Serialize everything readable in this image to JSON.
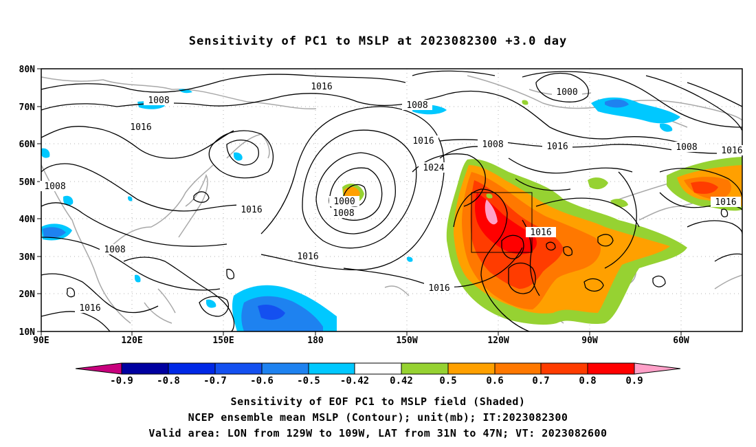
{
  "title": "Sensitivity of PC1 to MSLP at 2023082300 +3.0 day",
  "map": {
    "lon_labels": [
      "90E",
      "120E",
      "150E",
      "180",
      "150W",
      "120W",
      "90W",
      "60W"
    ],
    "lat_labels": [
      "80N",
      "70N",
      "60N",
      "50N",
      "40N",
      "30N",
      "20N",
      "10N"
    ],
    "contour_labels": [
      {
        "text": "1016"
      },
      {
        "text": "1008"
      },
      {
        "text": "1016"
      },
      {
        "text": "1008"
      },
      {
        "text": "1000"
      },
      {
        "text": "1008"
      },
      {
        "text": "1016"
      },
      {
        "text": "1008"
      },
      {
        "text": "1016"
      },
      {
        "text": "1016"
      },
      {
        "text": "1024"
      },
      {
        "text": "1000"
      },
      {
        "text": "1008"
      },
      {
        "text": "1016"
      },
      {
        "text": "1016"
      },
      {
        "text": "1008"
      },
      {
        "text": "1016"
      },
      {
        "text": "1016"
      },
      {
        "text": "1008"
      },
      {
        "text": "1016"
      },
      {
        "text": "1016"
      }
    ]
  },
  "colorbar": {
    "labels": [
      "-0.9",
      "-0.8",
      "-0.7",
      "-0.6",
      "-0.5",
      "-0.42",
      "0.42",
      "0.5",
      "0.6",
      "0.7",
      "0.8",
      "0.9"
    ],
    "colors": [
      "#c8007d",
      "#0000a0",
      "#0028e6",
      "#1450f0",
      "#1e82f0",
      "#00c8ff",
      "#ffffff",
      "#96d232",
      "#ffa000",
      "#ff7800",
      "#ff3c00",
      "#ff0000",
      "#ffa0c8"
    ]
  },
  "captions": {
    "line1": "Sensitivity of EOF PC1 to MSLP field (Shaded)",
    "line2": "NCEP ensemble mean MSLP (Contour); unit(mb); IT:2023082300",
    "line3": "Valid area: LON from 129W to 109W, LAT from 31N to 47N; VT: 2023082600"
  }
}
